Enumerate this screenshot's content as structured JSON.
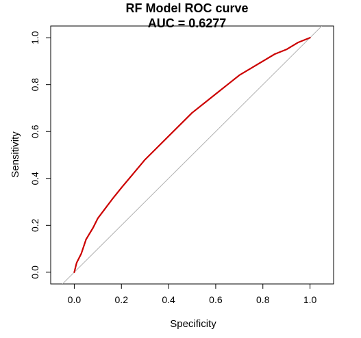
{
  "chart_data": {
    "type": "line",
    "title_line1": "RF Model ROC curve",
    "title_line2": "AUC = 0.6277",
    "xlabel": "Specificity",
    "ylabel": "Sensitivity",
    "xlim": [
      -0.1,
      1.1
    ],
    "ylim": [
      -0.05,
      1.05
    ],
    "x_ticks": [
      0.0,
      0.2,
      0.4,
      0.6,
      0.8,
      1.0
    ],
    "x_tick_labels": [
      "0.0",
      "0.2",
      "0.4",
      "0.6",
      "0.8",
      "1.0"
    ],
    "y_ticks": [
      0.0,
      0.2,
      0.4,
      0.6,
      0.8,
      1.0
    ],
    "y_tick_labels": [
      "0.0",
      "0.2",
      "0.4",
      "0.6",
      "0.8",
      "1.0"
    ],
    "grid": false,
    "reference_line": {
      "x": [
        -0.05,
        1.05
      ],
      "y": [
        -0.05,
        1.05
      ],
      "color": "#b3b3b3"
    },
    "series": [
      {
        "color": "#cc0000",
        "x": [
          0.0,
          0.01,
          0.03,
          0.05,
          0.08,
          0.1,
          0.13,
          0.16,
          0.2,
          0.25,
          0.3,
          0.35,
          0.4,
          0.45,
          0.5,
          0.55,
          0.6,
          0.65,
          0.7,
          0.75,
          0.8,
          0.85,
          0.9,
          0.95,
          1.0
        ],
        "y": [
          0.0,
          0.04,
          0.08,
          0.14,
          0.19,
          0.23,
          0.27,
          0.31,
          0.36,
          0.42,
          0.48,
          0.53,
          0.58,
          0.63,
          0.68,
          0.72,
          0.76,
          0.8,
          0.84,
          0.87,
          0.9,
          0.93,
          0.95,
          0.98,
          1.0
        ]
      }
    ]
  }
}
